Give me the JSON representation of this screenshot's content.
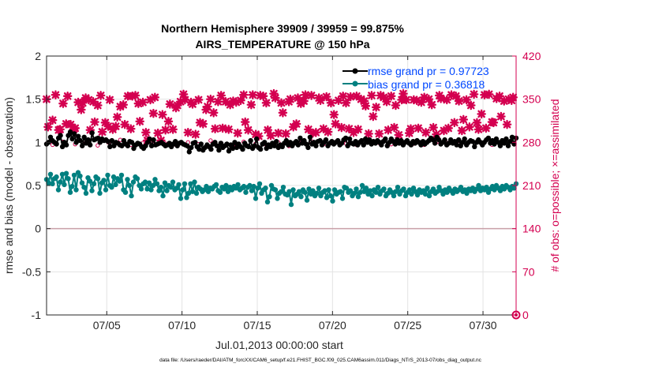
{
  "chart_data": {
    "type": "line",
    "title_line1": "Northern Hemisphere 39909 / 39959 = 99.875%",
    "title_line2": "AIRS_TEMPERATURE @ 150 hPa",
    "ylabel_left": "rmse and bias (model - observation)",
    "ylabel_right": "# of obs: o=possible; ×=assimilated",
    "xlabel": "Jul.01,2013 00:00:00 start",
    "footer": "data file: /Users/raeder/DAI/ATM_forcXX/CAM6_setup/f.e21.FHIST_BGC.f09_025.CAM6assim.011/Diags_NTrS_2013-07/obs_diag_output.nc",
    "xlim": [
      1,
      32.2
    ],
    "ylim_left": [
      -1,
      2
    ],
    "ylim_right": [
      0,
      420
    ],
    "x_ticks": [
      5,
      10,
      15,
      20,
      25,
      30
    ],
    "x_tick_labels": [
      "07/05",
      "07/10",
      "07/15",
      "07/20",
      "07/25",
      "07/30"
    ],
    "y_ticks_left": [
      -1,
      -0.5,
      0,
      0.5,
      1,
      1.5,
      2
    ],
    "y_tick_labels_left": [
      "-1",
      "-0.5",
      "0",
      "0.5",
      "1",
      "1.5",
      "2"
    ],
    "y_ticks_right": [
      0,
      70,
      140,
      210,
      280,
      350,
      420
    ],
    "y_tick_labels_right": [
      "0",
      "70",
      "140",
      "210",
      "280",
      "350",
      "420"
    ],
    "legend": [
      {
        "label": "rmse grand pr = 0.97723",
        "color": "#000000"
      },
      {
        "label": "bias grand pr = 0.36818",
        "color": "#008080"
      }
    ],
    "colors": {
      "rmse": "#000000",
      "bias": "#008080",
      "obs": "#d40050",
      "zero": "#c8a0a8"
    },
    "series": [
      {
        "name": "rmse",
        "values": [
          0.98,
          1.0,
          1.06,
          1.02,
          1.0,
          0.98,
          1.05,
          1.08,
          0.95,
          1.0,
          0.97,
          1.08,
          1.12,
          1.04,
          1.1,
          1.0,
          1.07,
          1.02,
          0.96,
          1.06,
          0.99,
          1.03,
          0.97,
          1.11,
          1.03,
          1.04,
          1.05,
          1.0,
          1.04,
          1.02,
          1.03,
          1.01,
          0.95,
          1.02,
          0.96,
          1.0,
          0.99,
          0.97,
          0.96,
          1.02,
          0.98,
          0.96,
          1.01,
          1.0,
          0.93,
          0.97,
          0.99,
          0.98,
          0.95,
          0.93,
          0.96,
          1.0,
          1.04,
          0.96,
          1.03,
          0.97,
          0.98,
          0.99,
          1.0,
          0.98,
          0.96,
          0.97,
          0.99,
          0.95,
          0.98,
          1.01,
          0.96,
          0.99,
          1.0,
          0.98,
          0.97,
          0.96,
          0.89,
          0.94,
          0.99,
          1.0,
          0.95,
          0.92,
          0.98,
          0.91,
          0.94,
          0.97,
          0.95,
          0.92,
          0.98,
          1.0,
          0.96,
          0.91,
          0.99,
          0.94,
          0.96,
          0.98,
          0.9,
          0.97,
          0.93,
          1.0,
          0.94,
          0.98,
          0.95,
          0.92,
          0.99,
          0.96,
          0.95,
          1.02,
          0.93,
          0.96,
          1.04,
          0.94,
          0.92,
          0.98,
          1.0,
          0.93,
          0.97,
          0.95,
          0.99,
          0.96,
          1.01,
          0.94,
          0.97,
          0.95,
          0.99,
          1.02,
          0.97,
          1.0,
          0.96,
          0.99,
          1.01,
          0.97,
          1.05,
          0.99,
          1.02,
          0.98,
          0.94,
          1.06,
          0.98,
          1.0,
          0.96,
          1.01,
          1.02,
          0.97,
          1.0,
          1.03,
          0.96,
          0.99,
          1.01,
          0.98,
          1.0,
          1.02,
          0.97,
          0.99,
          1.03,
          1.05,
          0.96,
          1.04,
          0.99,
          0.98,
          1.01,
          0.97,
          1.0,
          1.02,
          0.97,
          1.04,
          1.0,
          1.03,
          0.98,
          1.01,
          0.99,
          1.02,
          1.0,
          0.97,
          1.01,
          1.04,
          0.96,
          1.0,
          1.04,
          1.01,
          0.98,
          1.03,
          0.99,
          1.02,
          0.97,
          1.0,
          1.02,
          0.99,
          0.97,
          1.01,
          0.99,
          1.02,
          1.0,
          0.97,
          1.01,
          0.98,
          1.0,
          1.02,
          1.05,
          1.03,
          0.99,
          1.06,
          1.03,
          0.98,
          1.0,
          1.03,
          0.97,
          0.99,
          1.03,
          0.99,
          1.01,
          0.97,
          1.03,
          0.96,
          1.0,
          1.04,
          0.97,
          1.0,
          1.02,
          1.01,
          0.95,
          1.0,
          1.03,
          1.0,
          0.97,
          1.0,
          1.03,
          1.05,
          0.99,
          1.02,
          0.98,
          1.04,
          1.0,
          0.96,
          1.02,
          0.99,
          1.04,
          0.96,
          1.01,
          1.06,
          0.98,
          1.05
        ]
      },
      {
        "name": "bias",
        "values": [
          0.57,
          0.53,
          0.63,
          0.52,
          0.58,
          0.6,
          0.45,
          0.54,
          0.63,
          0.51,
          0.64,
          0.58,
          0.42,
          0.49,
          0.62,
          0.45,
          0.65,
          0.61,
          0.53,
          0.48,
          0.41,
          0.59,
          0.55,
          0.44,
          0.52,
          0.6,
          0.58,
          0.41,
          0.53,
          0.56,
          0.45,
          0.62,
          0.5,
          0.48,
          0.6,
          0.51,
          0.58,
          0.55,
          0.62,
          0.45,
          0.42,
          0.57,
          0.5,
          0.38,
          0.54,
          0.6,
          0.58,
          0.5,
          0.46,
          0.52,
          0.54,
          0.46,
          0.53,
          0.45,
          0.5,
          0.57,
          0.52,
          0.44,
          0.48,
          0.38,
          0.53,
          0.44,
          0.5,
          0.48,
          0.54,
          0.45,
          0.47,
          0.51,
          0.35,
          0.45,
          0.52,
          0.36,
          0.41,
          0.52,
          0.43,
          0.54,
          0.41,
          0.48,
          0.46,
          0.43,
          0.45,
          0.49,
          0.43,
          0.47,
          0.46,
          0.49,
          0.51,
          0.44,
          0.42,
          0.48,
          0.46,
          0.5,
          0.43,
          0.48,
          0.45,
          0.49,
          0.47,
          0.51,
          0.45,
          0.47,
          0.49,
          0.42,
          0.48,
          0.5,
          0.44,
          0.49,
          0.35,
          0.47,
          0.52,
          0.41,
          0.45,
          0.47,
          0.31,
          0.37,
          0.5,
          0.46,
          0.45,
          0.35,
          0.41,
          0.43,
          0.48,
          0.4,
          0.39,
          0.43,
          0.28,
          0.45,
          0.38,
          0.4,
          0.43,
          0.37,
          0.45,
          0.42,
          0.33,
          0.46,
          0.4,
          0.44,
          0.38,
          0.41,
          0.47,
          0.38,
          0.42,
          0.44,
          0.36,
          0.45,
          0.38,
          0.32,
          0.45,
          0.4,
          0.42,
          0.43,
          0.35,
          0.48,
          0.47,
          0.42,
          0.44,
          0.38,
          0.41,
          0.46,
          0.37,
          0.42,
          0.5,
          0.43,
          0.47,
          0.4,
          0.44,
          0.38,
          0.45,
          0.42,
          0.48,
          0.4,
          0.44,
          0.46,
          0.38,
          0.41,
          0.45,
          0.42,
          0.38,
          0.43,
          0.48,
          0.4,
          0.44,
          0.46,
          0.38,
          0.42,
          0.45,
          0.4,
          0.47,
          0.43,
          0.39,
          0.45,
          0.42,
          0.44,
          0.4,
          0.47,
          0.38,
          0.43,
          0.46,
          0.41,
          0.43,
          0.48,
          0.44,
          0.4,
          0.45,
          0.42,
          0.47,
          0.44,
          0.41,
          0.46,
          0.43,
          0.45,
          0.48,
          0.43,
          0.45,
          0.41,
          0.46,
          0.44,
          0.47,
          0.43,
          0.46,
          0.5,
          0.44,
          0.47,
          0.45,
          0.48,
          0.42,
          0.46,
          0.49,
          0.45,
          0.5,
          0.47,
          0.44,
          0.49,
          0.46,
          0.5,
          0.48,
          0.45,
          0.49,
          0.47,
          0.52
        ]
      },
      {
        "name": "obs_assimilated",
        "x": [
          1.0,
          1.1,
          1.4,
          1.6,
          1.8,
          1.9,
          2.1,
          2.3,
          2.4,
          2.6,
          2.8,
          2.9,
          3.1,
          3.3,
          3.4,
          3.6,
          3.8,
          3.9,
          4.1,
          4.2,
          4.4,
          4.6,
          4.7,
          4.9,
          5.1,
          5.2,
          5.4,
          5.6,
          5.7,
          5.9,
          6.1,
          6.2,
          6.4,
          6.6,
          6.7,
          6.9,
          7.1,
          7.2,
          7.4,
          7.6,
          7.7,
          7.9,
          8.1,
          8.2,
          8.4,
          8.6,
          8.7,
          8.9,
          9.1,
          9.2,
          9.4,
          9.6,
          9.7,
          9.9,
          10.1,
          10.2,
          10.4,
          10.6,
          10.7,
          10.9,
          11.1,
          11.2,
          11.4,
          11.6,
          11.7,
          11.9,
          12.1,
          12.2,
          12.4,
          12.6,
          12.7,
          12.9,
          13.1,
          13.2,
          13.4,
          13.6,
          13.7,
          13.9,
          14.1,
          14.2,
          14.4,
          14.6,
          14.7,
          14.9,
          15.1,
          15.2,
          15.4,
          15.6,
          15.7,
          15.9,
          16.1,
          16.2,
          16.4,
          16.6,
          16.7,
          16.9,
          17.1,
          17.2,
          17.4,
          17.6,
          17.7,
          17.9,
          18.1,
          18.2,
          18.4,
          18.6,
          18.7,
          18.9,
          19.1,
          19.2,
          19.4,
          19.6,
          19.7,
          19.9,
          20.1,
          20.2,
          20.4,
          20.6,
          20.7,
          20.9,
          21.1,
          21.2,
          21.4,
          21.6,
          21.7,
          21.9,
          22.1,
          22.2,
          22.4,
          22.6,
          22.7,
          22.9,
          23.1,
          23.2,
          23.4,
          23.6,
          23.7,
          23.9,
          24.1,
          24.2,
          24.4,
          24.6,
          24.7,
          24.9,
          25.1,
          25.2,
          25.4,
          25.6,
          25.7,
          25.9,
          26.1,
          26.2,
          26.4,
          26.6,
          26.7,
          26.9,
          27.1,
          27.2,
          27.4,
          27.6,
          27.7,
          27.9,
          28.1,
          28.2,
          28.4,
          28.6,
          28.7,
          28.9,
          29.1,
          29.2,
          29.4,
          29.6,
          29.7,
          29.9,
          30.1,
          30.2,
          30.4,
          30.6,
          30.7,
          30.9,
          31.1,
          31.2,
          31.4,
          31.6,
          31.7,
          31.9,
          32.0
        ],
        "values": [
          350,
          305,
          316,
          357,
          300,
          301,
          343,
          310,
          355,
          309,
          301,
          303,
          345,
          333,
          344,
          352,
          349,
          300,
          346,
          313,
          340,
          356,
          297,
          312,
          306,
          349,
          301,
          306,
          321,
          338,
          341,
          309,
          355,
          302,
          355,
          356,
          343,
          314,
          345,
          296,
          283,
          349,
          327,
          353,
          295,
          283,
          325,
          300,
          314,
          342,
          301,
          336,
          340,
          346,
          358,
          349,
          296,
          345,
          342,
          293,
          349,
          312,
          310,
          333,
          338,
          350,
          328,
          302,
          346,
          356,
          303,
          346,
          301,
          341,
          347,
          345,
          295,
          348,
          357,
          313,
          300,
          341,
          357,
          293,
          290,
          356,
          355,
          344,
          300,
          291,
          359,
          352,
          295,
          344,
          328,
          294,
          346,
          350,
          305,
          310,
          352,
          343,
          347,
          357,
          301,
          356,
          295,
          296,
          352,
          348,
          302,
          354,
          297,
          344,
          325,
          310,
          348,
          304,
          355,
          344,
          302,
          354,
          296,
          355,
          301,
          350,
          347,
          339,
          294,
          356,
          322,
          337,
          294,
          356,
          353,
          346,
          300,
          355,
          304,
          340,
          292,
          349,
          359,
          349,
          295,
          302,
          349,
          348,
          303,
          345,
          353,
          296,
          350,
          341,
          304,
          293,
          356,
          351,
          299,
          349,
          303,
          357,
          312,
          355,
          347,
          299,
          317,
          349,
          305,
          340,
          358,
          312,
          301,
          326,
          357,
          303,
          358,
          313,
          312,
          351,
          355,
          322,
          347,
          309,
          350,
          348,
          353
        ]
      },
      {
        "name": "obs_possible",
        "x": [
          1.0,
          1.4,
          2.1,
          2.9,
          3.6,
          4.4,
          5.1,
          5.9,
          6.6,
          7.4,
          8.1,
          8.9,
          9.6,
          10.4,
          11.1,
          11.9,
          12.6,
          13.4,
          14.1,
          14.9,
          15.6,
          16.4,
          17.1,
          17.9,
          18.6,
          19.4,
          20.1,
          20.9,
          21.6,
          22.4,
          23.1,
          23.9,
          24.6,
          25.4,
          26.1,
          26.9,
          27.6,
          28.4,
          29.1,
          29.9,
          30.6,
          31.4,
          32.0
        ],
        "values": [
          278,
          276,
          281,
          277,
          279,
          275,
          280,
          284,
          276,
          279,
          282,
          278,
          276,
          280,
          277,
          283,
          279,
          275,
          281,
          278,
          276,
          280,
          274,
          279,
          282,
          277,
          280,
          278,
          276,
          281,
          279,
          277,
          282,
          278,
          276,
          280,
          279,
          277,
          281,
          278,
          276,
          280,
          279
        ]
      }
    ]
  }
}
